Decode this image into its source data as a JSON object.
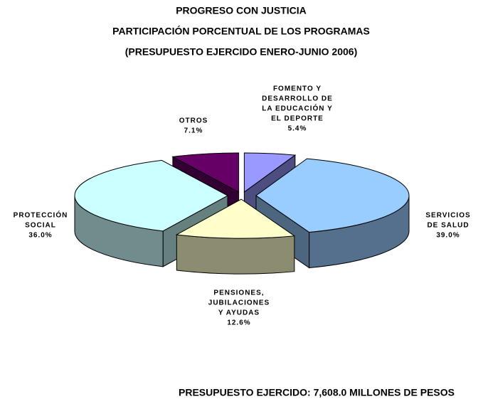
{
  "chart_data": {
    "type": "pie3d",
    "title": "PROGRESO CON JUSTICIA",
    "subtitle": [
      "PARTICIPACIÓN PORCENTUAL DE LOS PROGRAMAS",
      "(PRESUPUESTO EJERCIDO ENERO-JUNIO 2006)"
    ],
    "categories": [
      [
        "FOMENTO Y",
        "DESARROLLO DE",
        "LA EDUCACIÓN Y",
        "EL DEPORTE"
      ],
      [
        "SERVICIOS",
        "DE SALUD"
      ],
      [
        "PENSIONES,",
        "JUBILACIONES",
        "Y AYUDAS"
      ],
      [
        "PROTECCIÓN",
        "SOCIAL"
      ],
      [
        "OTROS"
      ]
    ],
    "values": [
      5.4,
      39,
      12.6,
      36,
      7.1
    ],
    "value_labels": [
      "5.4%",
      "39.0%",
      "12.6%",
      "36.0%",
      "7.1%"
    ],
    "colors": [
      "#9999ff",
      "#99ccff",
      "#ffffcc",
      "#ccffff",
      "#660066"
    ],
    "note": "PRESUPUESTO EJERCIDO: 7,608.0  MILLONES DE PESOS"
  }
}
